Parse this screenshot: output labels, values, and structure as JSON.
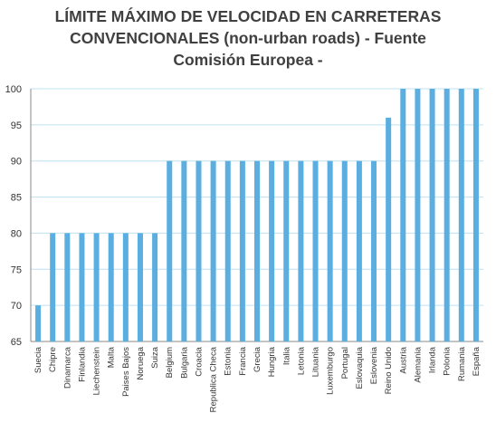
{
  "chart_data": {
    "type": "bar",
    "title_lines": [
      "LÍMITE MÁXIMO DE VELOCIDAD EN CARRETERAS",
      "CONVENCIONALES (non-urban roads) - Fuente",
      "Comisión Europea -"
    ],
    "categories": [
      "Suecia",
      "Chipre",
      "Dinamarca",
      "Finlandia",
      "Liechenstein",
      "Malta",
      "Paises Bajos",
      "Noruega",
      "Suiza",
      "Belgium",
      "Bulgaria",
      "Croacia",
      "Republica Checa",
      "Estonia",
      "Francia",
      "Grecia",
      "Hungria",
      "Italia",
      "Letonia",
      "Lituania",
      "Luxemburgo",
      "Portugal",
      "Eslovaquia",
      "Eslovenia",
      "Reino Unido",
      "Austria",
      "Alemania",
      "Irlanda",
      "Polonia",
      "Rumania",
      "España"
    ],
    "values": [
      70,
      80,
      80,
      80,
      80,
      80,
      80,
      80,
      80,
      90,
      90,
      90,
      90,
      90,
      90,
      90,
      90,
      90,
      90,
      90,
      90,
      90,
      90,
      90,
      96,
      100,
      100,
      100,
      100,
      100,
      100
    ],
    "ylim": [
      65,
      100
    ],
    "yticks": [
      65,
      70,
      75,
      80,
      85,
      90,
      95,
      100
    ],
    "grid": true,
    "bar_color": "#5aaee0",
    "grid_color": "#bfe0f2"
  }
}
